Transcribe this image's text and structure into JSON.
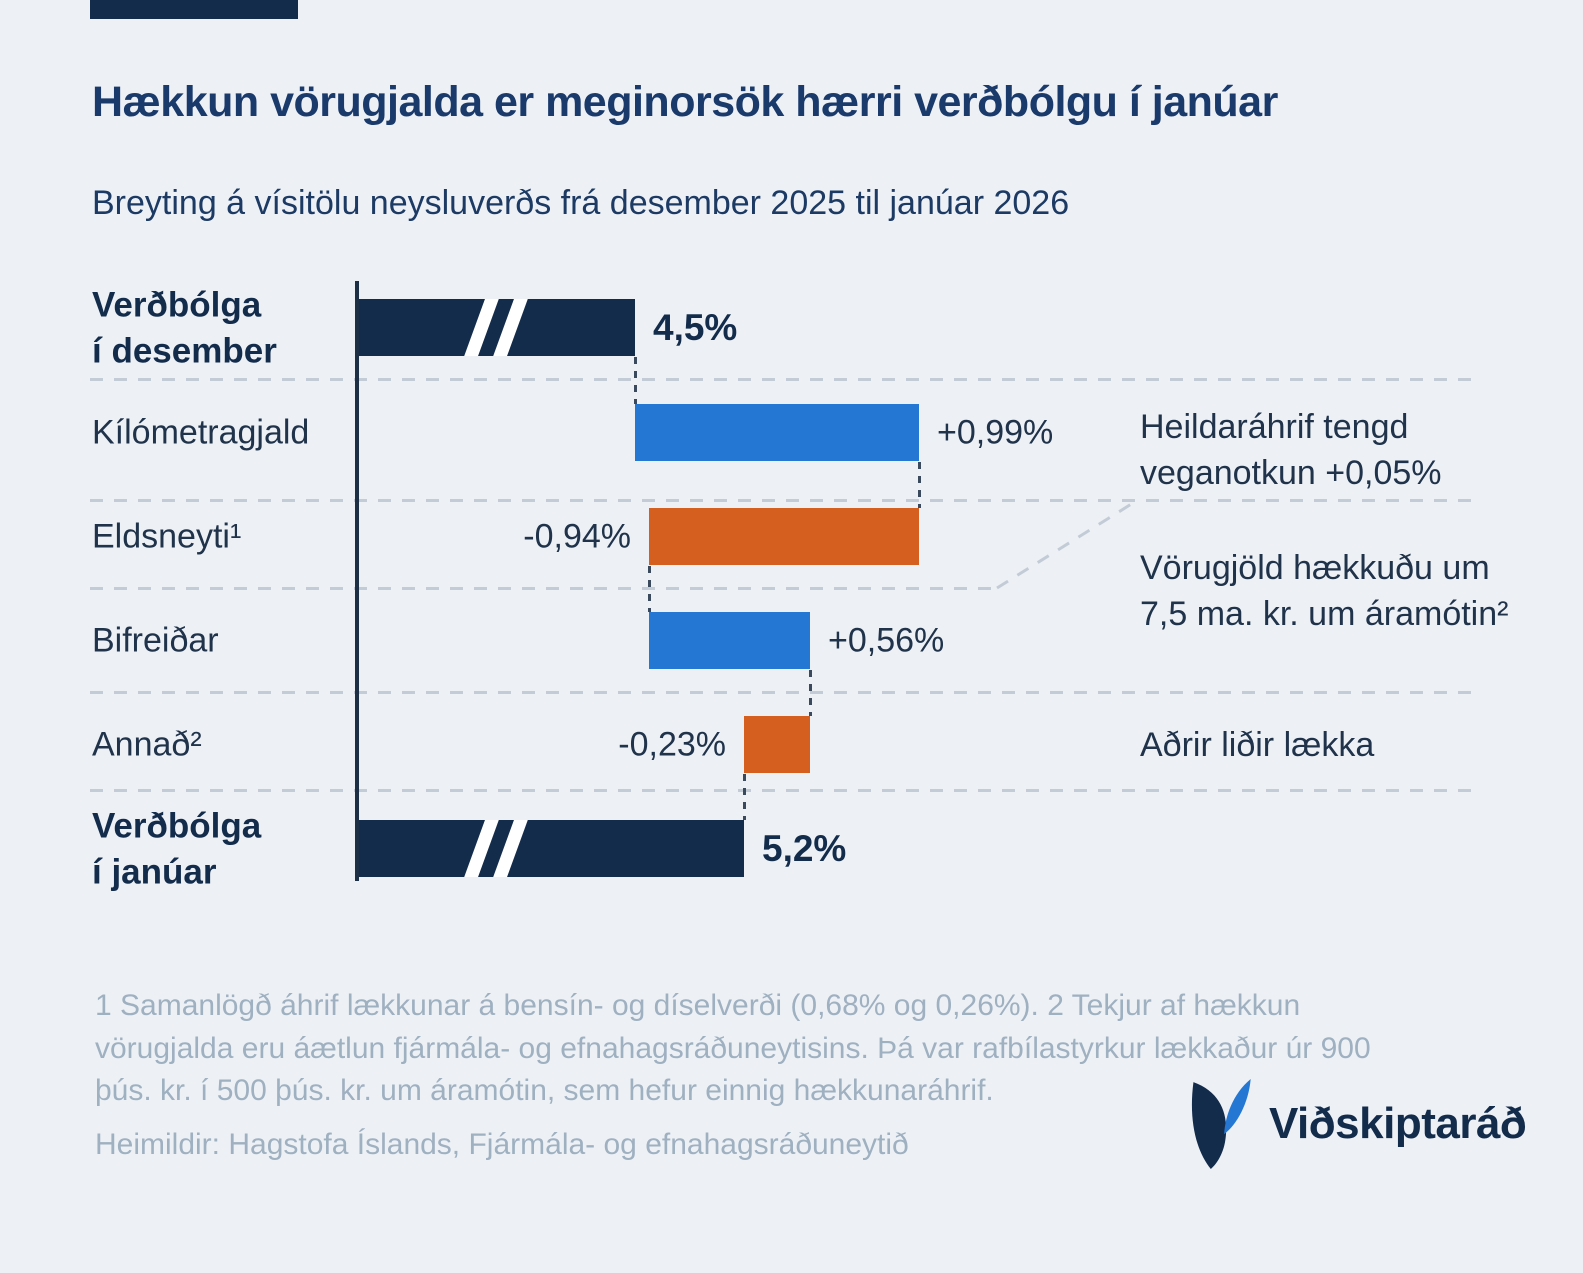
{
  "chart_data": {
    "type": "bar",
    "subtype": "waterfall",
    "title": "Hækkun vörugjalda er meginorsök hærri verðbólgu í janúar",
    "subtitle": "Breyting á vísitölu neysluverðs frá desember 2025 til janúar 2026",
    "unit": "%",
    "axis_break_on_totals": true,
    "rows": [
      {
        "label": "Verðbólga í desember",
        "label_lines": [
          "Verðbólga",
          "í desember"
        ],
        "kind": "total",
        "value": 4.5,
        "value_label": "4,5%",
        "axis_break": true
      },
      {
        "label": "Kílómetragjald",
        "kind": "delta",
        "value": 0.99,
        "value_label": "+0,99%"
      },
      {
        "label": "Eldsneyti¹",
        "kind": "delta",
        "value": -0.94,
        "value_label": "-0,94%"
      },
      {
        "label": "Bifreiðar",
        "kind": "delta",
        "value": 0.56,
        "value_label": "+0,56%"
      },
      {
        "label": "Annað²",
        "kind": "delta",
        "value": -0.23,
        "value_label": "-0,23%"
      },
      {
        "label": "Verðbólga í janúar",
        "label_lines": [
          "Verðbólga",
          "í janúar"
        ],
        "kind": "total",
        "value": 5.2,
        "value_label": "5,2%",
        "axis_break": true
      }
    ],
    "annotations": [
      "Heildaráhrif tengd veganotkun +0,05%",
      "Vörugjöld hækkuðu um 7,5 ma. kr. um áramótin²",
      "Aðrir liðir lækka"
    ],
    "colors": {
      "increase": "#2478d4",
      "decrease": "#d55f1e",
      "total": "#132c4b",
      "background": "#edf1f6"
    },
    "grid": "dashed row separators",
    "legend_position": "none"
  },
  "footnotes": {
    "text": "1 Samanlögð áhrif lækkunar á bensín- og díselverði (0,68% og 0,26%). 2 Tekjur af hækkun vörugjalda eru áætlun fjármála- og efnahagsráðuneytisins. Þá var rafbílastyrkur lækkaður úr 900 þús. kr. í 500 þús. kr. um áramótin, sem hefur einnig hækkunaráhrif."
  },
  "source": {
    "text": "Heimildir: Hagstofa Íslands, Fjármála- og efnahagsráðuneytið"
  },
  "brand": {
    "name": "Viðskiptaráð"
  }
}
